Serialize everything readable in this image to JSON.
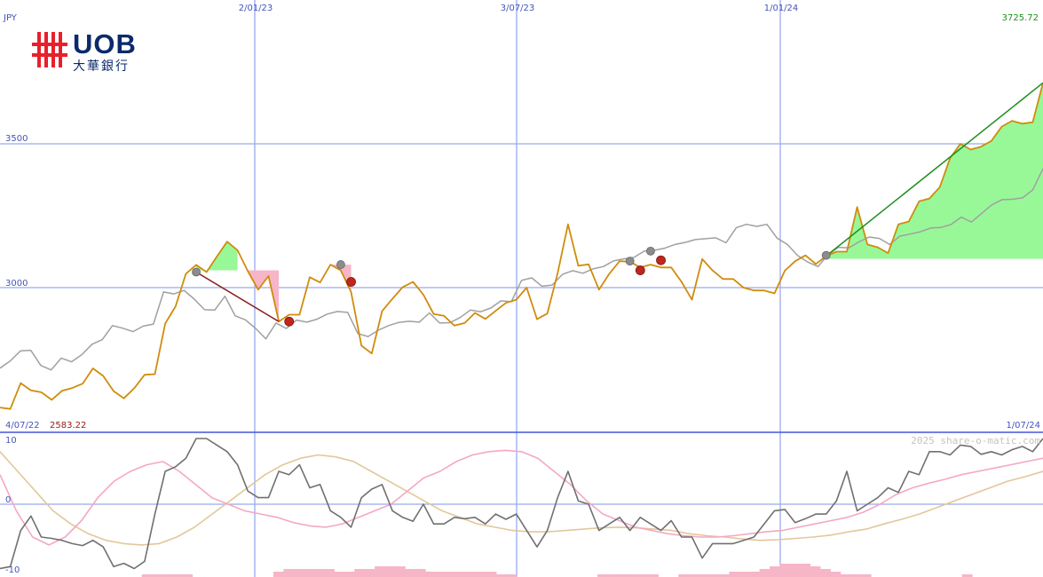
{
  "logo": {
    "name": "UOB",
    "chinese": "大華銀行"
  },
  "labels": {
    "currency": "JPY",
    "start_date": "4/07/22",
    "start_price": "2583.22",
    "end_date": "1/07/24",
    "last_price": "3725.72",
    "watermark": "2025 share-o-matic.com"
  },
  "colors": {
    "price": "#d08c0c",
    "relative": "#a0a0a0",
    "grid": "#99aaee",
    "up_fill": "#98f898",
    "down_fill": "#f7b5c8",
    "trend_up": "#1e8f1e",
    "trend_down": "#8a1a1a",
    "momentum": "#707070",
    "ma_fast": "#f4a8c4",
    "ma_slow": "#e2c79a",
    "volume": "#f7b5c8"
  },
  "chart_data": [
    {
      "type": "line",
      "panel": "price",
      "ylabel": "JPY",
      "ylim": [
        2580,
        3725.72
      ],
      "y_ticks": [
        3000,
        3500
      ],
      "x_ticks": [
        "2/01/23",
        "3/07/23",
        "1/01/24"
      ],
      "x_start": "4/07/22",
      "x_end": "1/07/24",
      "last_value": 3725.72,
      "start_value": 2583.22,
      "series": [
        {
          "values": [
            2583,
            2578,
            2668,
            2643,
            2636,
            2610,
            2641,
            2651,
            2666,
            2719,
            2693,
            2640,
            2615,
            2650,
            2697,
            2699,
            2875,
            2935,
            3048,
            3079,
            3054,
            3108,
            3160,
            3130,
            3057,
            2993,
            3040,
            2882,
            2906,
            2906,
            3036,
            3018,
            3080,
            3060,
            2985,
            2798,
            2771,
            2918,
            2961,
            3002,
            3020,
            2975,
            2908,
            2902,
            2868,
            2877,
            2912,
            2891,
            2919,
            2947,
            2958,
            3000,
            2890,
            2910,
            3050,
            3220,
            3076,
            3081,
            2993,
            3048,
            3092,
            3090,
            3070,
            3080,
            3070,
            3070,
            3020,
            2958,
            3099,
            3060,
            3030,
            3030,
            3000,
            2990,
            2990,
            2980,
            3059,
            3092,
            3112,
            3082,
            3110,
            3125,
            3125,
            3280,
            3150,
            3140,
            3120,
            3220,
            3230,
            3300,
            3310,
            3349,
            3450,
            3500,
            3480,
            3490,
            3510,
            3560,
            3580,
            3570,
            3575,
            3712
          ]
        },
        {
          "values": [
            2720,
            2745,
            2780,
            2782,
            2729,
            2714,
            2755,
            2742,
            2767,
            2803,
            2819,
            2868,
            2859,
            2847,
            2866,
            2873,
            2985,
            2978,
            2990,
            2960,
            2923,
            2922,
            2970,
            2902,
            2888,
            2858,
            2822,
            2877,
            2858,
            2887,
            2880,
            2890,
            2908,
            2917,
            2914,
            2840,
            2830,
            2852,
            2868,
            2879,
            2883,
            2880,
            2912,
            2877,
            2878,
            2896,
            2922,
            2916,
            2929,
            2954,
            2951,
            3025,
            3034,
            3005,
            3009,
            3046,
            3059,
            3050,
            3065,
            3073,
            3093,
            3100,
            3105,
            3127,
            3130,
            3137,
            3150,
            3157,
            3167,
            3170,
            3173,
            3156,
            3208,
            3220,
            3213,
            3220,
            3172,
            3150,
            3112,
            3089,
            3073,
            3116,
            3140,
            3138,
            3159,
            3176,
            3171,
            3150,
            3179,
            3186,
            3194,
            3207,
            3209,
            3219,
            3245,
            3228,
            3258,
            3288,
            3306,
            3307,
            3312,
            3340,
            3414
          ]
        }
      ]
    },
    {
      "type": "line",
      "panel": "momentum",
      "ylim": [
        -10,
        10
      ],
      "y_ticks": [
        10,
        0,
        -10
      ],
      "series": [
        {
          "values": [
            -9.8,
            -9.5,
            -4,
            -1.8,
            -5,
            -5.2,
            -5.5,
            -6,
            -6.3,
            -5.5,
            -6.5,
            -9.5,
            -9,
            -9.8,
            -8.7,
            -1.5,
            5,
            5.7,
            7,
            10,
            10,
            9,
            8,
            6,
            2,
            1,
            1,
            5,
            4.5,
            6,
            2.5,
            3,
            -1,
            -2,
            -3.5,
            1,
            2.3,
            3,
            -1,
            -2,
            -2.6,
            0,
            -3,
            -3,
            -2,
            -2.2,
            -2,
            -3,
            -1.5,
            -2.3,
            -1.5,
            -4,
            -6.5,
            -4,
            1,
            5,
            0.5,
            0,
            -4,
            -3,
            -2,
            -4,
            -2,
            -3,
            -4,
            -2.5,
            -5,
            -5,
            -8.2,
            -6,
            -6,
            -6,
            -5.5,
            -5,
            -3,
            -1,
            -0.8,
            -2.8,
            -2.2,
            -1.5,
            -1.5,
            0.5,
            5,
            -1,
            0,
            1,
            2.5,
            1.8,
            5,
            4.5,
            8,
            8,
            7.5,
            9,
            8.8,
            7.6,
            8,
            7.5,
            8.3,
            8.8,
            8,
            10
          ]
        },
        {
          "values": [
            4.5,
            -1,
            -5,
            -6.2,
            -5,
            -2.5,
            1,
            3.5,
            5,
            6,
            6.5,
            5,
            3,
            1,
            0,
            -1,
            -1.5,
            -2,
            -2.8,
            -3.3,
            -3.5,
            -3,
            -2,
            -1,
            0,
            2,
            4,
            5,
            6.5,
            7.5,
            8,
            8.2,
            8,
            7,
            5,
            3,
            0.5,
            -1.5,
            -2.5,
            -3.5,
            -4,
            -4.5,
            -4.8,
            -5,
            -5,
            -4.8,
            -4.5,
            -4.2,
            -4,
            -3.5,
            -3,
            -2.5,
            -2,
            -1.2,
            0,
            1.5,
            2.5,
            3.2,
            3.8,
            4.5,
            5,
            5.5,
            6,
            6.5,
            7
          ]
        },
        {
          "values": [
            8,
            5,
            2,
            -1,
            -3,
            -4.5,
            -5.5,
            -6,
            -6.2,
            -6,
            -5,
            -3.5,
            -1.5,
            0.5,
            2.5,
            4.5,
            6,
            7,
            7.5,
            7.2,
            6.5,
            5,
            3.5,
            2,
            0.5,
            -1,
            -2,
            -3,
            -3.5,
            -4,
            -4.2,
            -4.2,
            -4,
            -3.8,
            -3.6,
            -3.5,
            -3.6,
            -3.8,
            -4,
            -4.5,
            -4.8,
            -5,
            -5.3,
            -5.5,
            -5.4,
            -5.2,
            -5,
            -4.7,
            -4.2,
            -3.8,
            -3,
            -2.3,
            -1.5,
            -0.5,
            0.5,
            1.5,
            2.5,
            3.5,
            4.2,
            5
          ]
        }
      ]
    },
    {
      "type": "bar",
      "panel": "volume",
      "values": [
        0,
        0,
        0,
        0,
        0,
        0,
        0,
        0,
        0,
        0,
        0,
        0,
        0,
        0,
        1,
        1,
        1,
        1,
        1,
        0,
        0,
        0,
        0,
        0,
        0,
        0,
        0,
        2,
        3,
        3,
        3,
        3,
        3,
        2,
        2,
        3,
        3,
        4,
        4,
        4,
        3,
        3,
        2,
        2,
        2,
        2,
        2,
        2,
        2,
        1,
        1,
        0,
        0,
        0,
        0,
        0,
        0,
        0,
        0,
        1,
        1,
        1,
        1,
        1,
        1,
        0,
        0,
        1,
        1,
        1,
        1,
        1,
        2,
        2,
        2,
        3,
        4,
        5,
        5,
        5,
        4,
        3,
        2,
        1,
        1,
        1,
        0,
        0,
        0,
        0,
        0,
        0,
        0,
        0,
        0,
        1,
        0,
        0,
        0,
        0,
        0,
        0,
        0
      ]
    }
  ]
}
